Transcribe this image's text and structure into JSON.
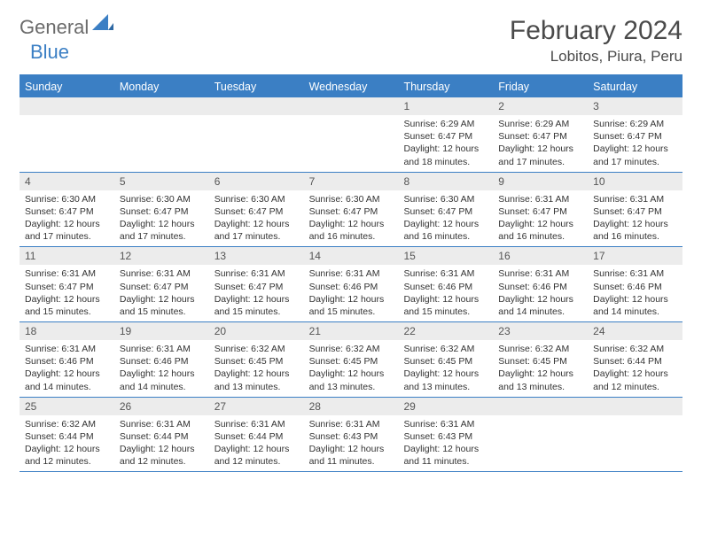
{
  "logo": {
    "part1": "General",
    "part2": "Blue"
  },
  "title": "February 2024",
  "location": "Lobitos, Piura, Peru",
  "colors": {
    "accent": "#3b7fc4",
    "gray_bg": "#ececec",
    "text": "#333333",
    "title_text": "#4a4a4a",
    "logo_gray": "#6b6b6b"
  },
  "day_headers": [
    "Sunday",
    "Monday",
    "Tuesday",
    "Wednesday",
    "Thursday",
    "Friday",
    "Saturday"
  ],
  "weeks": [
    [
      {
        "n": "",
        "sr": "",
        "ss": "",
        "dl": ""
      },
      {
        "n": "",
        "sr": "",
        "ss": "",
        "dl": ""
      },
      {
        "n": "",
        "sr": "",
        "ss": "",
        "dl": ""
      },
      {
        "n": "",
        "sr": "",
        "ss": "",
        "dl": ""
      },
      {
        "n": "1",
        "sr": "Sunrise: 6:29 AM",
        "ss": "Sunset: 6:47 PM",
        "dl": "Daylight: 12 hours and 18 minutes."
      },
      {
        "n": "2",
        "sr": "Sunrise: 6:29 AM",
        "ss": "Sunset: 6:47 PM",
        "dl": "Daylight: 12 hours and 17 minutes."
      },
      {
        "n": "3",
        "sr": "Sunrise: 6:29 AM",
        "ss": "Sunset: 6:47 PM",
        "dl": "Daylight: 12 hours and 17 minutes."
      }
    ],
    [
      {
        "n": "4",
        "sr": "Sunrise: 6:30 AM",
        "ss": "Sunset: 6:47 PM",
        "dl": "Daylight: 12 hours and 17 minutes."
      },
      {
        "n": "5",
        "sr": "Sunrise: 6:30 AM",
        "ss": "Sunset: 6:47 PM",
        "dl": "Daylight: 12 hours and 17 minutes."
      },
      {
        "n": "6",
        "sr": "Sunrise: 6:30 AM",
        "ss": "Sunset: 6:47 PM",
        "dl": "Daylight: 12 hours and 17 minutes."
      },
      {
        "n": "7",
        "sr": "Sunrise: 6:30 AM",
        "ss": "Sunset: 6:47 PM",
        "dl": "Daylight: 12 hours and 16 minutes."
      },
      {
        "n": "8",
        "sr": "Sunrise: 6:30 AM",
        "ss": "Sunset: 6:47 PM",
        "dl": "Daylight: 12 hours and 16 minutes."
      },
      {
        "n": "9",
        "sr": "Sunrise: 6:31 AM",
        "ss": "Sunset: 6:47 PM",
        "dl": "Daylight: 12 hours and 16 minutes."
      },
      {
        "n": "10",
        "sr": "Sunrise: 6:31 AM",
        "ss": "Sunset: 6:47 PM",
        "dl": "Daylight: 12 hours and 16 minutes."
      }
    ],
    [
      {
        "n": "11",
        "sr": "Sunrise: 6:31 AM",
        "ss": "Sunset: 6:47 PM",
        "dl": "Daylight: 12 hours and 15 minutes."
      },
      {
        "n": "12",
        "sr": "Sunrise: 6:31 AM",
        "ss": "Sunset: 6:47 PM",
        "dl": "Daylight: 12 hours and 15 minutes."
      },
      {
        "n": "13",
        "sr": "Sunrise: 6:31 AM",
        "ss": "Sunset: 6:47 PM",
        "dl": "Daylight: 12 hours and 15 minutes."
      },
      {
        "n": "14",
        "sr": "Sunrise: 6:31 AM",
        "ss": "Sunset: 6:46 PM",
        "dl": "Daylight: 12 hours and 15 minutes."
      },
      {
        "n": "15",
        "sr": "Sunrise: 6:31 AM",
        "ss": "Sunset: 6:46 PM",
        "dl": "Daylight: 12 hours and 15 minutes."
      },
      {
        "n": "16",
        "sr": "Sunrise: 6:31 AM",
        "ss": "Sunset: 6:46 PM",
        "dl": "Daylight: 12 hours and 14 minutes."
      },
      {
        "n": "17",
        "sr": "Sunrise: 6:31 AM",
        "ss": "Sunset: 6:46 PM",
        "dl": "Daylight: 12 hours and 14 minutes."
      }
    ],
    [
      {
        "n": "18",
        "sr": "Sunrise: 6:31 AM",
        "ss": "Sunset: 6:46 PM",
        "dl": "Daylight: 12 hours and 14 minutes."
      },
      {
        "n": "19",
        "sr": "Sunrise: 6:31 AM",
        "ss": "Sunset: 6:46 PM",
        "dl": "Daylight: 12 hours and 14 minutes."
      },
      {
        "n": "20",
        "sr": "Sunrise: 6:32 AM",
        "ss": "Sunset: 6:45 PM",
        "dl": "Daylight: 12 hours and 13 minutes."
      },
      {
        "n": "21",
        "sr": "Sunrise: 6:32 AM",
        "ss": "Sunset: 6:45 PM",
        "dl": "Daylight: 12 hours and 13 minutes."
      },
      {
        "n": "22",
        "sr": "Sunrise: 6:32 AM",
        "ss": "Sunset: 6:45 PM",
        "dl": "Daylight: 12 hours and 13 minutes."
      },
      {
        "n": "23",
        "sr": "Sunrise: 6:32 AM",
        "ss": "Sunset: 6:45 PM",
        "dl": "Daylight: 12 hours and 13 minutes."
      },
      {
        "n": "24",
        "sr": "Sunrise: 6:32 AM",
        "ss": "Sunset: 6:44 PM",
        "dl": "Daylight: 12 hours and 12 minutes."
      }
    ],
    [
      {
        "n": "25",
        "sr": "Sunrise: 6:32 AM",
        "ss": "Sunset: 6:44 PM",
        "dl": "Daylight: 12 hours and 12 minutes."
      },
      {
        "n": "26",
        "sr": "Sunrise: 6:31 AM",
        "ss": "Sunset: 6:44 PM",
        "dl": "Daylight: 12 hours and 12 minutes."
      },
      {
        "n": "27",
        "sr": "Sunrise: 6:31 AM",
        "ss": "Sunset: 6:44 PM",
        "dl": "Daylight: 12 hours and 12 minutes."
      },
      {
        "n": "28",
        "sr": "Sunrise: 6:31 AM",
        "ss": "Sunset: 6:43 PM",
        "dl": "Daylight: 12 hours and 11 minutes."
      },
      {
        "n": "29",
        "sr": "Sunrise: 6:31 AM",
        "ss": "Sunset: 6:43 PM",
        "dl": "Daylight: 12 hours and 11 minutes."
      },
      {
        "n": "",
        "sr": "",
        "ss": "",
        "dl": ""
      },
      {
        "n": "",
        "sr": "",
        "ss": "",
        "dl": ""
      }
    ]
  ]
}
